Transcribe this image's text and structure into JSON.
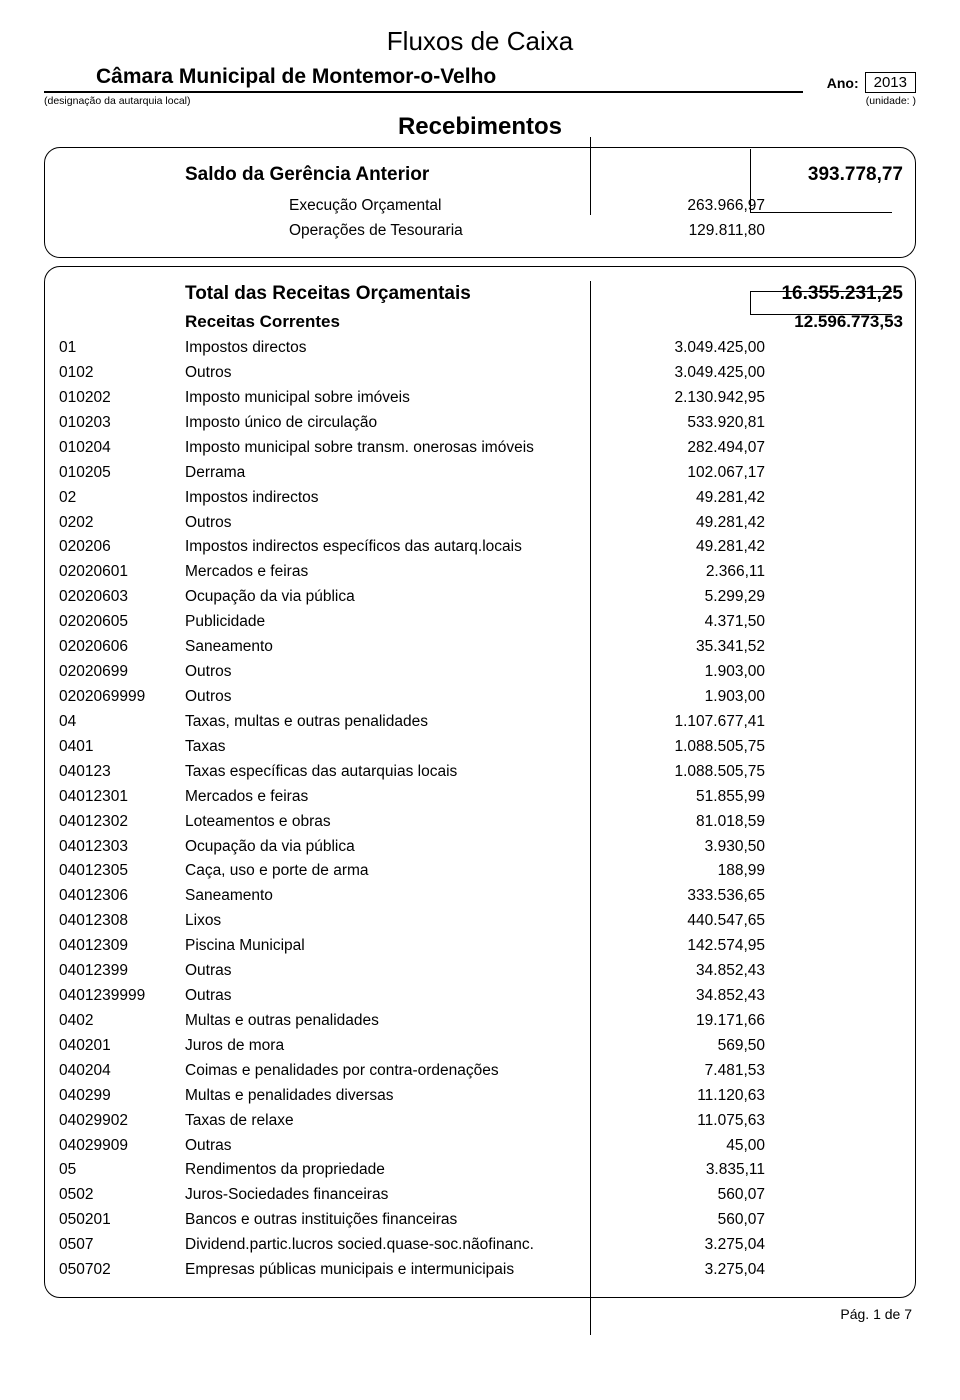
{
  "doc": {
    "main_title": "Fluxos de Caixa",
    "subtitle": "Câmara Municipal de Montemor-o-Velho",
    "designation_note": "(designação da autarquia local)",
    "year_label": "Ano:",
    "year_value": "2013",
    "unit_note": "(unidade: )",
    "section_heading": "Recebimentos",
    "footer": "Pág. 1 de 7",
    "colors": {
      "text": "#000000",
      "background": "#ffffff",
      "border": "#000000"
    }
  },
  "block1": {
    "rows": [
      {
        "level": 0,
        "code": "",
        "label": "Saldo da Gerência Anterior",
        "v3": "",
        "v4": "393.778,77"
      },
      {
        "level": 2,
        "code": "",
        "label": "",
        "v3": "",
        "v4": ""
      },
      {
        "level": 2,
        "code": "",
        "label_class": "indent-a",
        "label": "Execução Orçamental",
        "v3": "263.966,97",
        "v4": ""
      },
      {
        "level": 2,
        "code": "",
        "label_class": "indent-a",
        "label": "Operações de Tesouraria",
        "v3": "129.811,80",
        "v4": ""
      }
    ]
  },
  "block2": {
    "rows": [
      {
        "level": 0,
        "code": "",
        "label": "Total das Receitas Orçamentais",
        "v3": "",
        "v4": "16.355.231,25"
      },
      {
        "level": 1,
        "code": "",
        "label": "Receitas Correntes",
        "v3": "",
        "v4": "12.596.773,53"
      },
      {
        "level": 2,
        "code": "01",
        "label": "Impostos directos",
        "v3": "3.049.425,00",
        "v4": ""
      },
      {
        "level": 2,
        "code": "0102",
        "label": "Outros",
        "v3": "3.049.425,00",
        "v4": ""
      },
      {
        "level": 2,
        "code": "010202",
        "label": "Imposto municipal sobre imóveis",
        "v3": "2.130.942,95",
        "v4": ""
      },
      {
        "level": 2,
        "code": "010203",
        "label": "Imposto único de circulação",
        "v3": "533.920,81",
        "v4": ""
      },
      {
        "level": 2,
        "code": "010204",
        "label": "Imposto municipal sobre transm. onerosas imóveis",
        "v3": "282.494,07",
        "v4": ""
      },
      {
        "level": 2,
        "code": "010205",
        "label": "Derrama",
        "v3": "102.067,17",
        "v4": ""
      },
      {
        "level": 2,
        "code": "02",
        "label": "Impostos indirectos",
        "v3": "49.281,42",
        "v4": ""
      },
      {
        "level": 2,
        "code": "0202",
        "label": "Outros",
        "v3": "49.281,42",
        "v4": ""
      },
      {
        "level": 2,
        "code": "020206",
        "label": "Impostos indirectos específicos das autarq.locais",
        "v3": "49.281,42",
        "v4": ""
      },
      {
        "level": 2,
        "code": "02020601",
        "label": "Mercados e feiras",
        "v3": "2.366,11",
        "v4": ""
      },
      {
        "level": 2,
        "code": "02020603",
        "label": "Ocupação da via pública",
        "v3": "5.299,29",
        "v4": ""
      },
      {
        "level": 2,
        "code": "02020605",
        "label": "Publicidade",
        "v3": "4.371,50",
        "v4": ""
      },
      {
        "level": 2,
        "code": "02020606",
        "label": "Saneamento",
        "v3": "35.341,52",
        "v4": ""
      },
      {
        "level": 2,
        "code": "02020699",
        "label": "Outros",
        "v3": "1.903,00",
        "v4": ""
      },
      {
        "level": 2,
        "code": "0202069999",
        "label": "Outros",
        "v3": "1.903,00",
        "v4": ""
      },
      {
        "level": 2,
        "code": "04",
        "label": "Taxas, multas e outras penalidades",
        "v3": "1.107.677,41",
        "v4": ""
      },
      {
        "level": 2,
        "code": "0401",
        "label": "Taxas",
        "v3": "1.088.505,75",
        "v4": ""
      },
      {
        "level": 2,
        "code": "040123",
        "label": "Taxas específicas das autarquias locais",
        "v3": "1.088.505,75",
        "v4": ""
      },
      {
        "level": 2,
        "code": "04012301",
        "label": "Mercados e feiras",
        "v3": "51.855,99",
        "v4": ""
      },
      {
        "level": 2,
        "code": "04012302",
        "label": "Loteamentos e obras",
        "v3": "81.018,59",
        "v4": ""
      },
      {
        "level": 2,
        "code": "04012303",
        "label": "Ocupação da via pública",
        "v3": "3.930,50",
        "v4": ""
      },
      {
        "level": 2,
        "code": "04012305",
        "label": "Caça, uso e porte de arma",
        "v3": "188,99",
        "v4": ""
      },
      {
        "level": 2,
        "code": "04012306",
        "label": "Saneamento",
        "v3": "333.536,65",
        "v4": ""
      },
      {
        "level": 2,
        "code": "04012308",
        "label": "Lixos",
        "v3": "440.547,65",
        "v4": ""
      },
      {
        "level": 2,
        "code": "04012309",
        "label": "Piscina Municipal",
        "v3": "142.574,95",
        "v4": ""
      },
      {
        "level": 2,
        "code": "04012399",
        "label": "Outras",
        "v3": "34.852,43",
        "v4": ""
      },
      {
        "level": 2,
        "code": "0401239999",
        "label": "Outras",
        "v3": "34.852,43",
        "v4": ""
      },
      {
        "level": 2,
        "code": "0402",
        "label": "Multas e outras penalidades",
        "v3": "19.171,66",
        "v4": ""
      },
      {
        "level": 2,
        "code": "040201",
        "label": "Juros de mora",
        "v3": "569,50",
        "v4": ""
      },
      {
        "level": 2,
        "code": "040204",
        "label": "Coimas e penalidades por contra-ordenações",
        "v3": "7.481,53",
        "v4": ""
      },
      {
        "level": 2,
        "code": "040299",
        "label": "Multas e penalidades diversas",
        "v3": "11.120,63",
        "v4": ""
      },
      {
        "level": 2,
        "code": "04029902",
        "label": "Taxas de relaxe",
        "v3": "11.075,63",
        "v4": ""
      },
      {
        "level": 2,
        "code": "04029909",
        "label": "Outras",
        "v3": "45,00",
        "v4": ""
      },
      {
        "level": 2,
        "code": "05",
        "label": "Rendimentos da propriedade",
        "v3": "3.835,11",
        "v4": ""
      },
      {
        "level": 2,
        "code": "0502",
        "label": "Juros-Sociedades financeiras",
        "v3": "560,07",
        "v4": ""
      },
      {
        "level": 2,
        "code": "050201",
        "label": "Bancos e outras instituições financeiras",
        "v3": "560,07",
        "v4": ""
      },
      {
        "level": 2,
        "code": "0507",
        "label": "Dividend.partic.lucros socied.quase-soc.nãofinanc.",
        "v3": "3.275,04",
        "v4": ""
      },
      {
        "level": 2,
        "code": "050702",
        "label": "Empresas públicas municipais e intermunicipais",
        "v3": "3.275,04",
        "v4": ""
      }
    ]
  }
}
